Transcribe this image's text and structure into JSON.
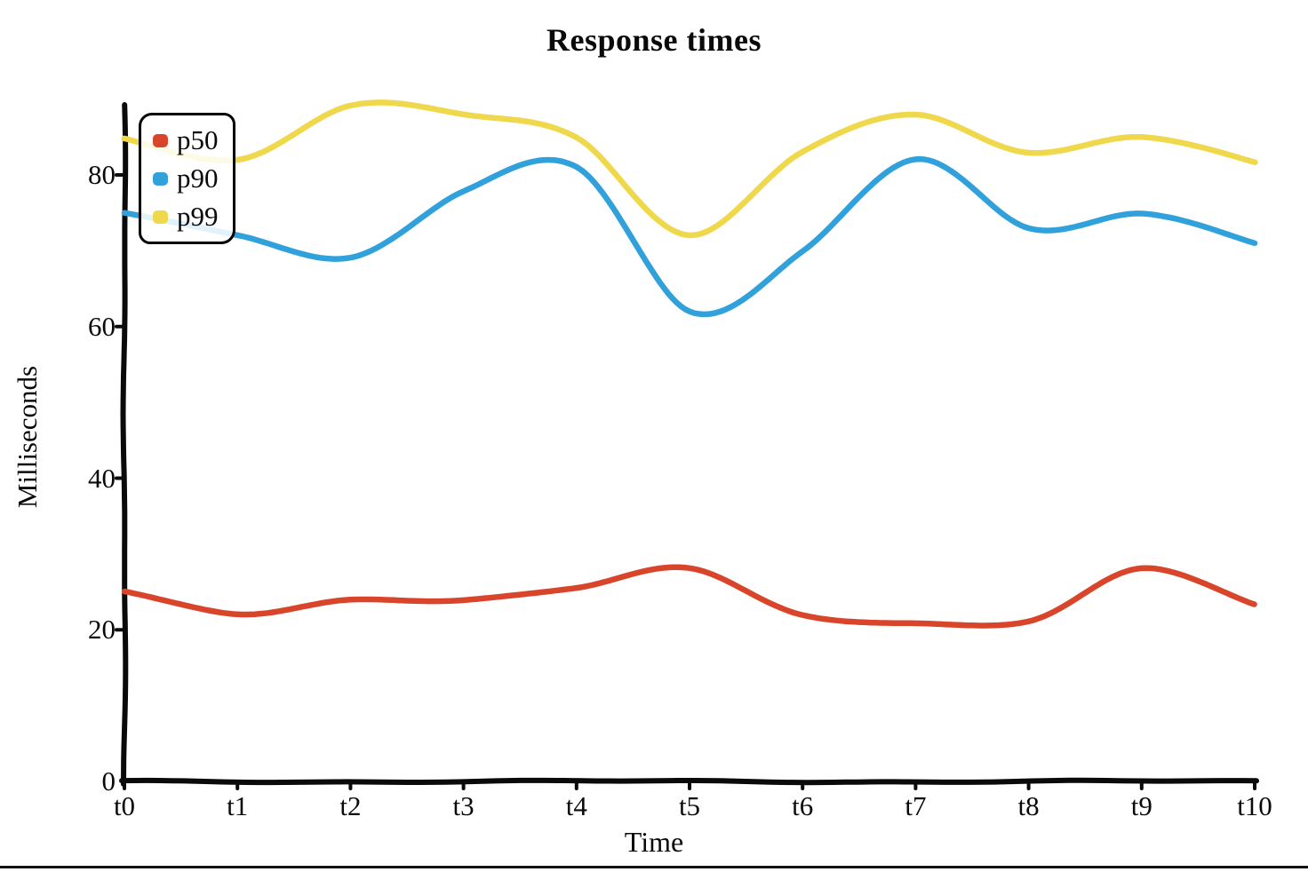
{
  "chart": {
    "title": "Response times",
    "x_axis_label": "Time",
    "y_axis_label": "Milliseconds"
  },
  "chart_data": {
    "type": "line",
    "title": "Response times",
    "xlabel": "Time",
    "ylabel": "Milliseconds",
    "categories": [
      "t0",
      "t1",
      "t2",
      "t3",
      "t4",
      "t5",
      "t6",
      "t7",
      "t8",
      "t9",
      "t10"
    ],
    "yticks": [
      0,
      20,
      40,
      60,
      80
    ],
    "ylim": [
      0,
      90
    ],
    "grid": false,
    "legend_position": "upper-left",
    "style": "hand-drawn-xkcd",
    "axis_color": "#0a0a0a",
    "series": [
      {
        "name": "p50",
        "color": "#d8452b",
        "values": [
          25,
          22,
          24,
          24,
          25.5,
          28,
          22,
          21,
          21,
          28,
          23.5
        ]
      },
      {
        "name": "p90",
        "color": "#31a1db",
        "values": [
          75,
          72,
          69,
          78,
          81,
          62,
          70,
          82,
          73,
          75,
          71
        ]
      },
      {
        "name": "p99",
        "color": "#f0d84c",
        "values": [
          85,
          82,
          89,
          88,
          85,
          72,
          83,
          88,
          83,
          85,
          81.5
        ]
      }
    ]
  }
}
